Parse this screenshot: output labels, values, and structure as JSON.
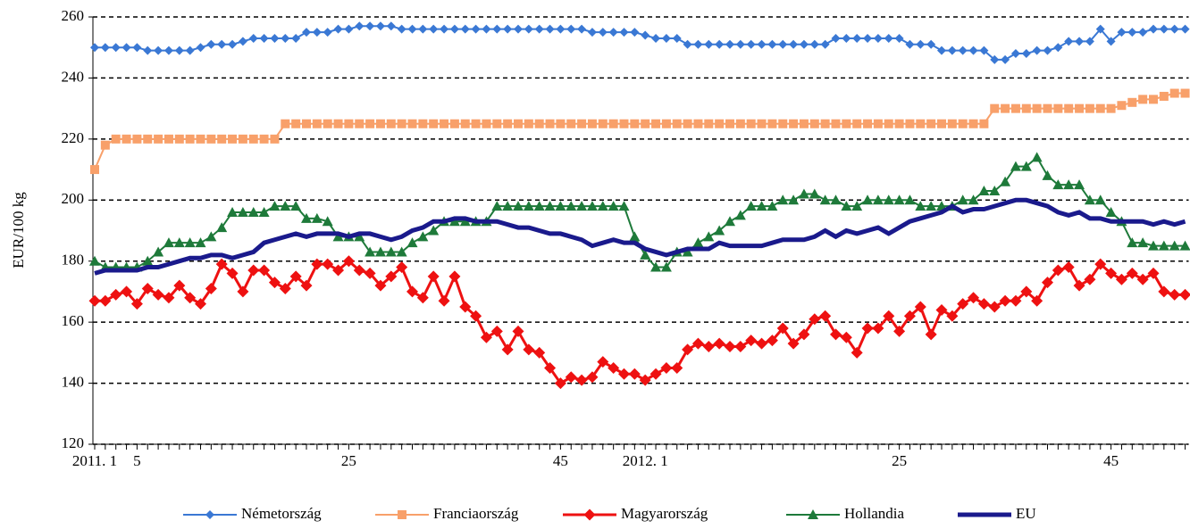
{
  "chart_data": {
    "type": "line",
    "y_label": "EUR/100 kg",
    "categories": [
      "2011. 1",
      null,
      null,
      null,
      "5",
      null,
      null,
      null,
      null,
      null,
      null,
      null,
      null,
      null,
      null,
      null,
      null,
      null,
      null,
      null,
      null,
      null,
      null,
      null,
      "25",
      null,
      null,
      null,
      null,
      null,
      null,
      null,
      null,
      null,
      null,
      null,
      null,
      null,
      null,
      null,
      null,
      null,
      null,
      null,
      "45",
      null,
      null,
      null,
      null,
      null,
      null,
      null,
      "2012. 1",
      null,
      null,
      null,
      null,
      null,
      null,
      null,
      null,
      null,
      null,
      null,
      null,
      null,
      null,
      null,
      null,
      null,
      null,
      null,
      null,
      null,
      null,
      null,
      "25",
      null,
      null,
      null,
      null,
      null,
      null,
      null,
      null,
      null,
      null,
      null,
      null,
      null,
      null,
      null,
      null,
      null,
      null,
      null,
      "45",
      null,
      null,
      null,
      null,
      null,
      null,
      null
    ],
    "ylim": [
      120,
      260
    ],
    "yticks": [
      120,
      140,
      160,
      180,
      200,
      220,
      240,
      260
    ],
    "grid": true,
    "legend": "bottom",
    "series": [
      {
        "name": "Németország",
        "color": "#3a78d4",
        "marker": "diamond",
        "values": [
          250,
          250,
          250,
          250,
          250,
          249,
          249,
          249,
          249,
          249,
          250,
          251,
          251,
          251,
          252,
          253,
          253,
          253,
          253,
          253,
          255,
          255,
          255,
          256,
          256,
          257,
          257,
          257,
          257,
          256,
          256,
          256,
          256,
          256,
          256,
          256,
          256,
          256,
          256,
          256,
          256,
          256,
          256,
          256,
          256,
          256,
          256,
          255,
          255,
          255,
          255,
          255,
          254,
          253,
          253,
          253,
          251,
          251,
          251,
          251,
          251,
          251,
          251,
          251,
          251,
          251,
          251,
          251,
          251,
          251,
          253,
          253,
          253,
          253,
          253,
          253,
          253,
          251,
          251,
          251,
          249,
          249,
          249,
          249,
          249,
          246,
          246,
          248,
          248,
          249,
          249,
          250,
          252,
          252,
          252,
          256,
          252,
          255,
          255,
          255,
          256,
          256,
          256,
          256
        ]
      },
      {
        "name": "Franciaország",
        "color": "#f8a06a",
        "marker": "square",
        "values": [
          210,
          218,
          220,
          220,
          220,
          220,
          220,
          220,
          220,
          220,
          220,
          220,
          220,
          220,
          220,
          220,
          220,
          220,
          225,
          225,
          225,
          225,
          225,
          225,
          225,
          225,
          225,
          225,
          225,
          225,
          225,
          225,
          225,
          225,
          225,
          225,
          225,
          225,
          225,
          225,
          225,
          225,
          225,
          225,
          225,
          225,
          225,
          225,
          225,
          225,
          225,
          225,
          225,
          225,
          225,
          225,
          225,
          225,
          225,
          225,
          225,
          225,
          225,
          225,
          225,
          225,
          225,
          225,
          225,
          225,
          225,
          225,
          225,
          225,
          225,
          225,
          225,
          225,
          225,
          225,
          225,
          225,
          225,
          225,
          225,
          230,
          230,
          230,
          230,
          230,
          230,
          230,
          230,
          230,
          230,
          230,
          230,
          231,
          232,
          233,
          233,
          234,
          235,
          235
        ]
      },
      {
        "name": "Magyarország",
        "color": "#ee1111",
        "marker": "bigdiamond",
        "values": [
          167,
          167,
          169,
          170,
          166,
          171,
          169,
          168,
          172,
          168,
          166,
          171,
          179,
          176,
          170,
          177,
          177,
          173,
          171,
          175,
          172,
          179,
          179,
          177,
          180,
          177,
          176,
          172,
          175,
          178,
          170,
          168,
          175,
          167,
          175,
          165,
          162,
          155,
          157,
          151,
          157,
          151,
          150,
          145,
          140,
          142,
          141,
          142,
          147,
          145,
          143,
          143,
          141,
          143,
          145,
          145,
          151,
          153,
          152,
          153,
          152,
          152,
          154,
          153,
          154,
          158,
          153,
          156,
          161,
          162,
          156,
          155,
          150,
          158,
          158,
          162,
          157,
          162,
          165,
          156,
          164,
          162,
          166,
          168,
          166,
          165,
          167,
          167,
          170,
          167,
          173,
          177,
          178,
          172,
          174,
          179,
          176,
          174,
          176,
          174,
          176,
          170,
          169,
          169
        ]
      },
      {
        "name": "Hollandia",
        "color": "#1e7a3a",
        "marker": "triangle",
        "values": [
          180,
          178,
          178,
          178,
          178,
          180,
          183,
          186,
          186,
          186,
          186,
          188,
          191,
          196,
          196,
          196,
          196,
          198,
          198,
          198,
          194,
          194,
          193,
          188,
          188,
          188,
          183,
          183,
          183,
          183,
          186,
          188,
          190,
          193,
          193,
          193,
          193,
          193,
          198,
          198,
          198,
          198,
          198,
          198,
          198,
          198,
          198,
          198,
          198,
          198,
          198,
          188,
          182,
          178,
          178,
          183,
          183,
          186,
          188,
          190,
          193,
          195,
          198,
          198,
          198,
          200,
          200,
          202,
          202,
          200,
          200,
          198,
          198,
          200,
          200,
          200,
          200,
          200,
          198,
          198,
          198,
          198,
          200,
          200,
          203,
          203,
          206,
          211,
          211,
          214,
          208,
          205,
          205,
          205,
          200,
          200,
          196,
          193,
          186,
          186,
          185,
          185,
          185,
          185
        ]
      },
      {
        "name": "EU",
        "color": "#1a1a8c",
        "marker": "none",
        "values": [
          176,
          177,
          177,
          177,
          177,
          178,
          178,
          179,
          180,
          181,
          181,
          182,
          182,
          181,
          182,
          183,
          186,
          187,
          188,
          189,
          188,
          189,
          189,
          189,
          188,
          189,
          189,
          188,
          187,
          188,
          190,
          191,
          193,
          193,
          194,
          194,
          193,
          193,
          193,
          192,
          191,
          191,
          190,
          189,
          189,
          188,
          187,
          185,
          186,
          187,
          186,
          186,
          184,
          183,
          182,
          183,
          184,
          184,
          184,
          186,
          185,
          185,
          185,
          185,
          186,
          187,
          187,
          187,
          188,
          190,
          188,
          190,
          189,
          190,
          191,
          189,
          191,
          193,
          194,
          195,
          196,
          198,
          196,
          197,
          197,
          198,
          199,
          200,
          200,
          199,
          198,
          196,
          195,
          196,
          194,
          194,
          193,
          193,
          193,
          193,
          192,
          193,
          192,
          193
        ]
      }
    ]
  }
}
